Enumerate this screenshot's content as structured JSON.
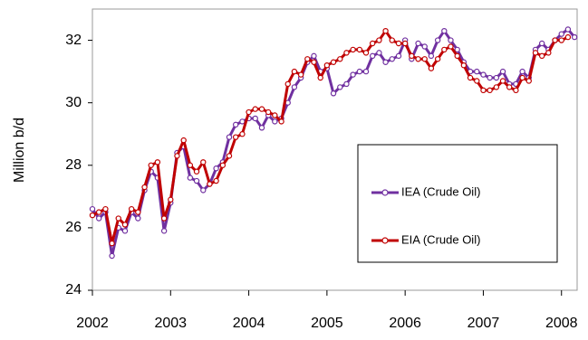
{
  "chart_data": {
    "type": "line",
    "y_label": "Million b/d",
    "x": [
      2002,
      2002.083,
      2002.167,
      2002.25,
      2002.333,
      2002.417,
      2002.5,
      2002.583,
      2002.667,
      2002.75,
      2002.833,
      2002.917,
      2003,
      2003.083,
      2003.167,
      2003.25,
      2003.333,
      2003.417,
      2003.5,
      2003.583,
      2003.667,
      2003.75,
      2003.833,
      2003.917,
      2004,
      2004.083,
      2004.167,
      2004.25,
      2004.333,
      2004.417,
      2004.5,
      2004.583,
      2004.667,
      2004.75,
      2004.833,
      2004.917,
      2005,
      2005.083,
      2005.167,
      2005.25,
      2005.333,
      2005.417,
      2005.5,
      2005.583,
      2005.667,
      2005.75,
      2005.833,
      2005.917,
      2006,
      2006.083,
      2006.167,
      2006.25,
      2006.333,
      2006.417,
      2006.5,
      2006.583,
      2006.667,
      2006.75,
      2006.833,
      2006.917,
      2007,
      2007.083,
      2007.167,
      2007.25,
      2007.333,
      2007.417,
      2007.5,
      2007.583,
      2007.667,
      2007.75,
      2007.833,
      2007.917,
      2008,
      2008.083,
      2008.167
    ],
    "series": [
      {
        "name": "IEA (Crude Oil)",
        "color": "#7030a0",
        "values": [
          26.6,
          26.3,
          26.5,
          25.1,
          26.0,
          25.9,
          26.5,
          26.3,
          27.2,
          27.8,
          27.6,
          25.9,
          26.8,
          28.4,
          28.6,
          27.6,
          27.5,
          27.2,
          27.4,
          27.9,
          28.1,
          28.9,
          29.3,
          29.4,
          29.5,
          29.5,
          29.2,
          29.6,
          29.4,
          29.5,
          30.0,
          30.5,
          30.8,
          31.3,
          31.5,
          31.0,
          31.1,
          30.3,
          30.5,
          30.6,
          30.9,
          31.0,
          31.0,
          31.5,
          31.6,
          31.3,
          31.4,
          31.5,
          32.0,
          31.4,
          31.9,
          31.8,
          31.5,
          32.0,
          32.3,
          32.0,
          31.7,
          31.3,
          31.0,
          31.0,
          30.9,
          30.8,
          30.8,
          31.0,
          30.6,
          30.6,
          31.0,
          30.8,
          31.7,
          31.9,
          31.7,
          32.0,
          32.2,
          32.35,
          32.1
        ]
      },
      {
        "name": "EIA (Crude Oil)",
        "color": "#c00000",
        "values": [
          26.4,
          26.5,
          26.6,
          25.5,
          26.3,
          26.1,
          26.6,
          26.5,
          27.3,
          28.0,
          28.1,
          26.3,
          26.9,
          28.3,
          28.8,
          28.0,
          27.8,
          28.1,
          27.4,
          27.5,
          28.0,
          28.3,
          28.9,
          29.0,
          29.7,
          29.8,
          29.8,
          29.7,
          29.6,
          29.4,
          30.6,
          31.0,
          30.9,
          31.4,
          31.3,
          30.8,
          31.2,
          31.3,
          31.4,
          31.6,
          31.7,
          31.7,
          31.6,
          31.9,
          32.0,
          32.3,
          32.0,
          31.9,
          31.9,
          31.5,
          31.4,
          31.4,
          31.1,
          31.4,
          31.7,
          31.8,
          31.5,
          31.2,
          30.8,
          30.7,
          30.4,
          30.4,
          30.5,
          30.7,
          30.5,
          30.4,
          30.8,
          30.7,
          31.6,
          31.5,
          31.6,
          32.0,
          32.0,
          32.1,
          null
        ]
      }
    ],
    "xlim": [
      2002,
      2008.2
    ],
    "xticks": [
      2002,
      2003,
      2004,
      2005,
      2006,
      2007,
      2008
    ],
    "ylim": [
      24,
      33
    ],
    "yticks": [
      24,
      26,
      28,
      30,
      32
    ],
    "grid": false
  }
}
